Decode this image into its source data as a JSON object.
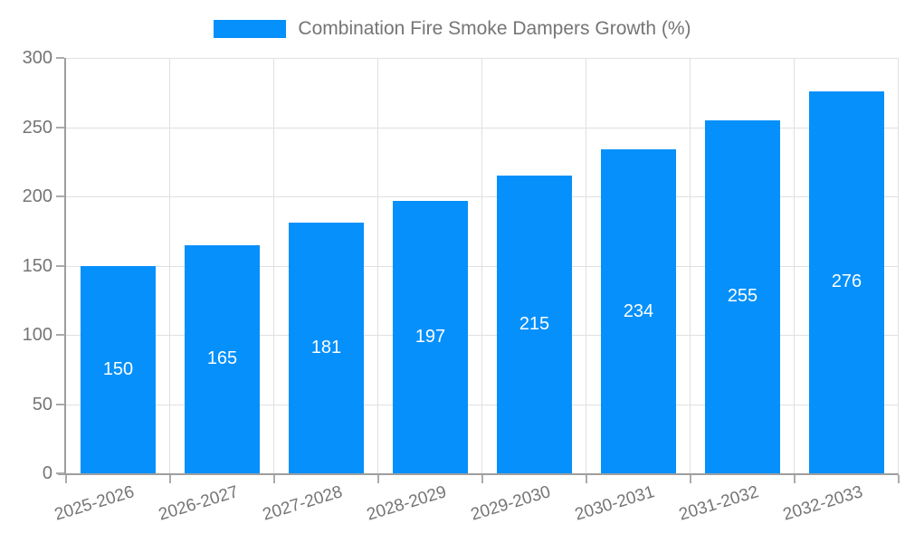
{
  "chart_data": {
    "type": "bar",
    "title": "Combination Fire Smoke Dampers Growth (%)",
    "categories": [
      "2025-2026",
      "2026-2027",
      "2027-2028",
      "2028-2029",
      "2029-2030",
      "2030-2031",
      "2031-2032",
      "2032-2033"
    ],
    "values": [
      150,
      165,
      181,
      197,
      215,
      234,
      255,
      276
    ],
    "xlabel": "",
    "ylabel": "",
    "ylim": [
      0,
      300
    ],
    "yticks": [
      0,
      50,
      100,
      150,
      200,
      250,
      300
    ],
    "grid": true,
    "legend_position": "top",
    "x_label_rotation_deg": -17,
    "colors": {
      "bar": "#0590fb",
      "bar_label": "#ffffff",
      "axis_line": "#9e9e9e",
      "gridline": "#e0e0e0",
      "tick_mark": "#ababab",
      "tick_text": "#757575",
      "legend_text": "#757575",
      "background": "#ffffff"
    }
  }
}
